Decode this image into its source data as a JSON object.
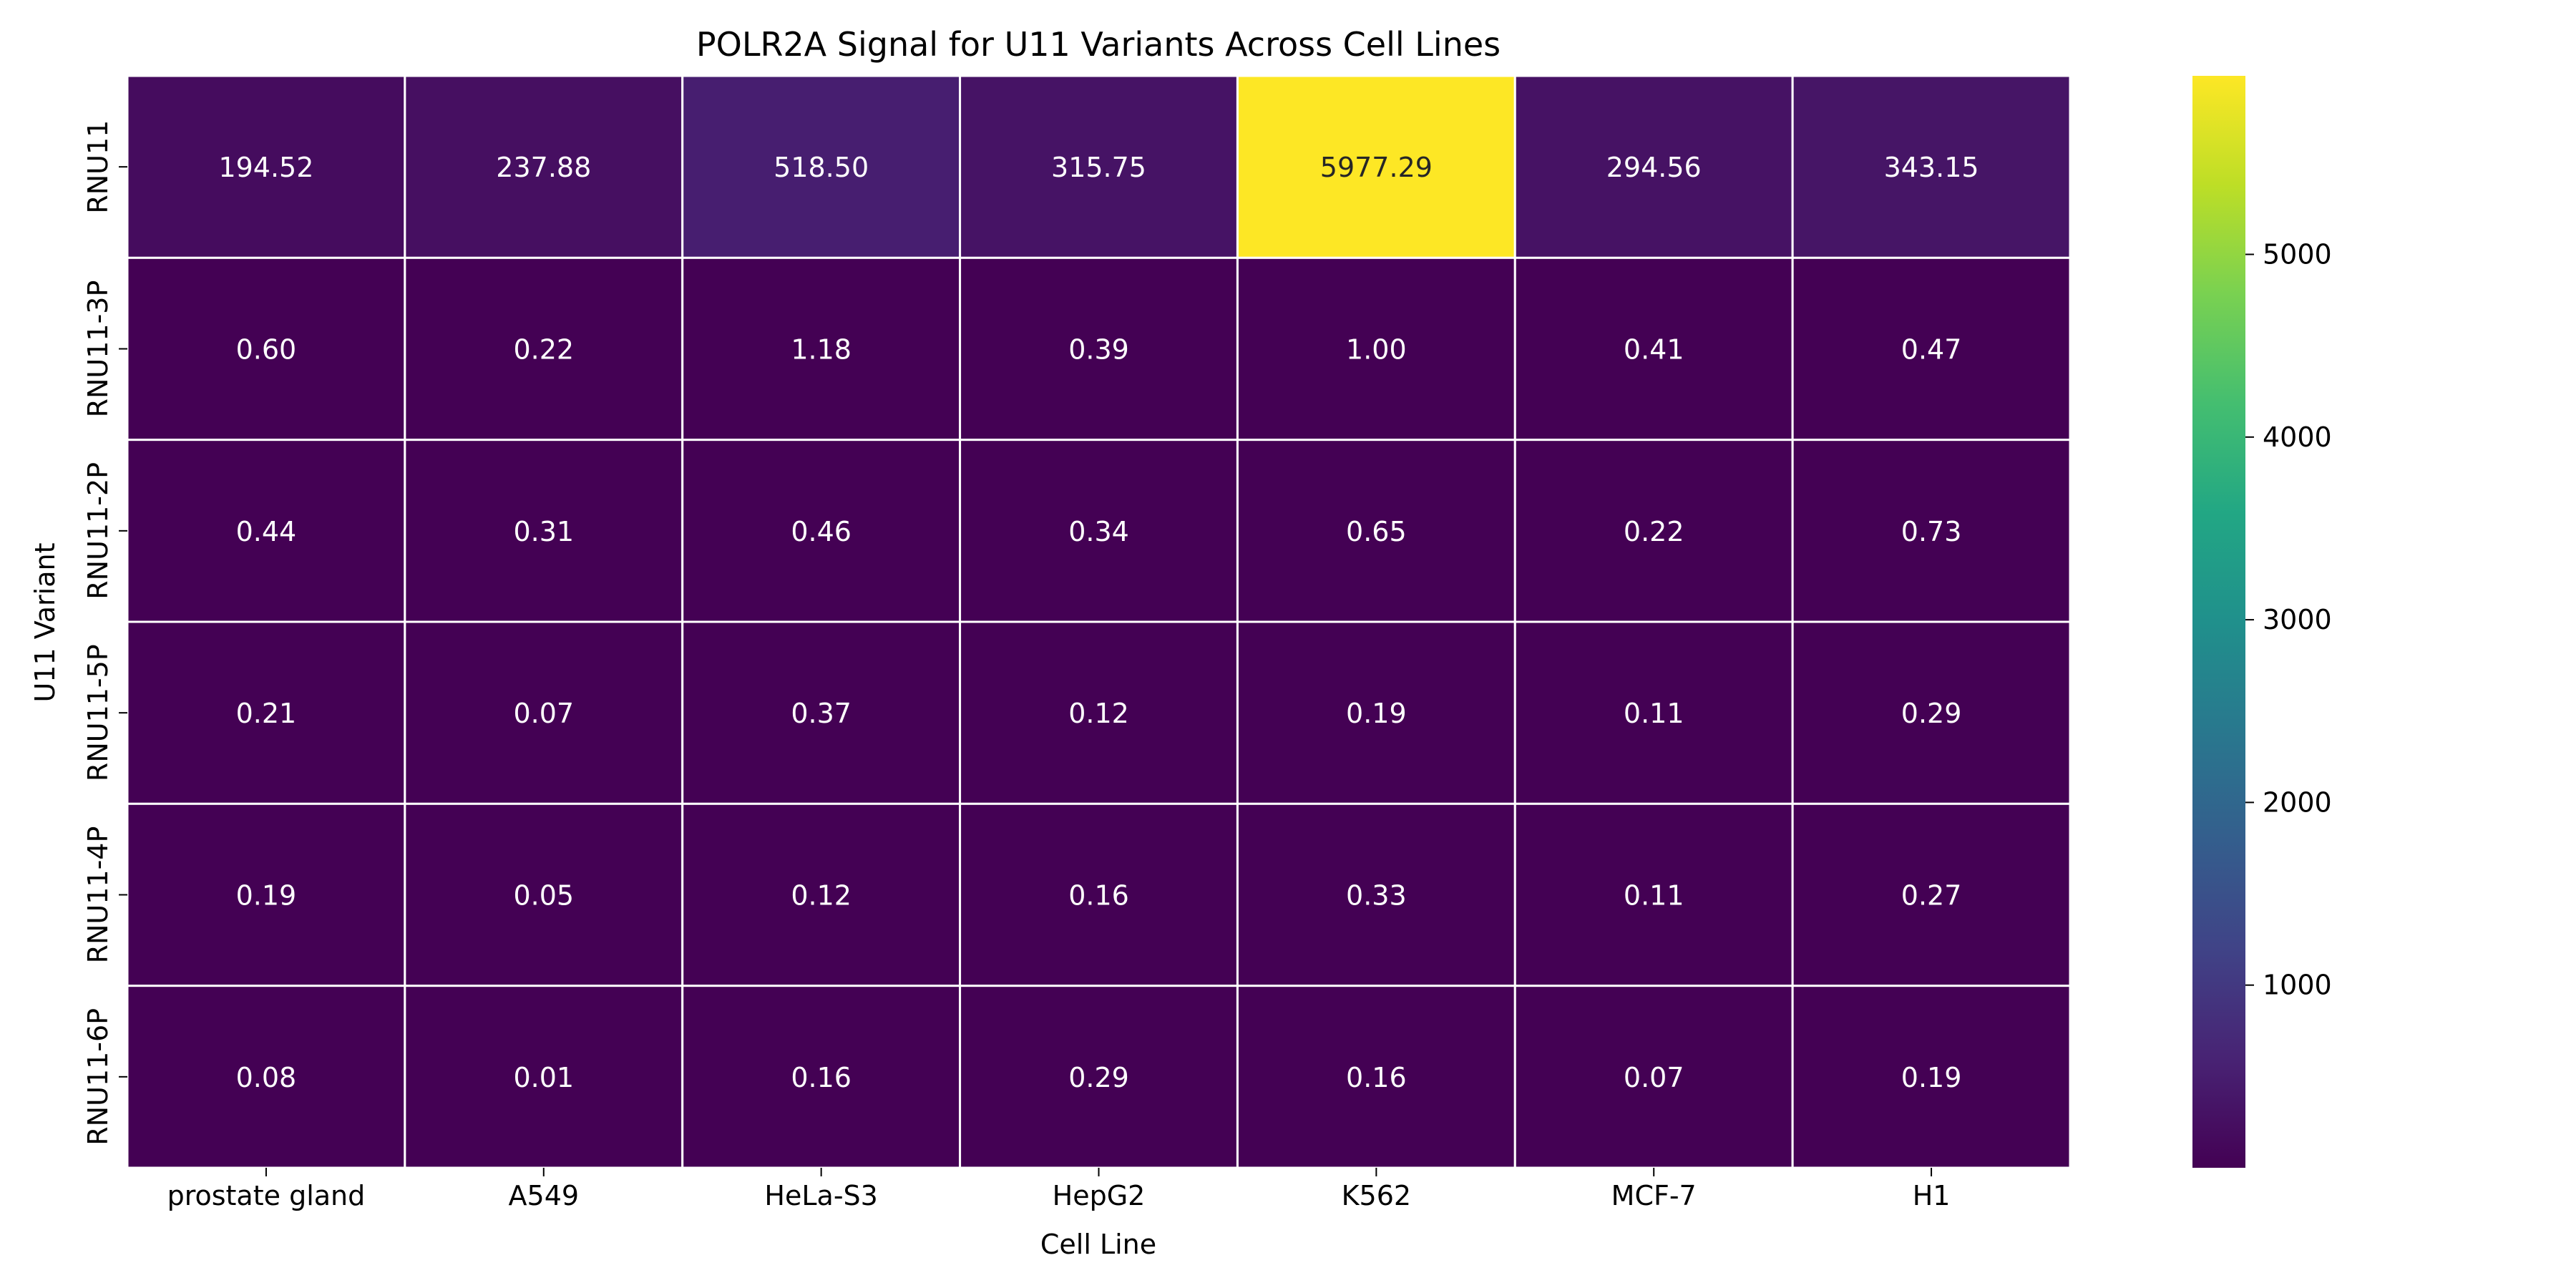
{
  "chart_data": {
    "type": "heatmap",
    "title": "POLR2A Signal for U11 Variants Across Cell Lines",
    "xlabel": "Cell Line",
    "ylabel": "U11 Variant",
    "x_categories": [
      "prostate gland",
      "A549",
      "HeLa-S3",
      "HepG2",
      "K562",
      "MCF-7",
      "H1"
    ],
    "y_categories": [
      "RNU11",
      "RNU11-3P",
      "RNU11-2P",
      "RNU11-5P",
      "RNU11-4P",
      "RNU11-6P"
    ],
    "values": [
      [
        194.52,
        237.88,
        518.5,
        315.75,
        5977.29,
        294.56,
        343.15
      ],
      [
        0.6,
        0.22,
        1.18,
        0.39,
        1.0,
        0.41,
        0.47
      ],
      [
        0.44,
        0.31,
        0.46,
        0.34,
        0.65,
        0.22,
        0.73
      ],
      [
        0.21,
        0.07,
        0.37,
        0.12,
        0.19,
        0.11,
        0.29
      ],
      [
        0.19,
        0.05,
        0.12,
        0.16,
        0.33,
        0.11,
        0.27
      ],
      [
        0.08,
        0.01,
        0.16,
        0.29,
        0.16,
        0.07,
        0.19
      ]
    ],
    "value_format": "2 decimals",
    "colormap": "viridis",
    "vmin": 0.01,
    "vmax": 5977.29,
    "colorbar_ticks": [
      1000,
      2000,
      3000,
      4000,
      5000
    ],
    "cell_border_color": "#ffffff",
    "legend_position": "right"
  }
}
